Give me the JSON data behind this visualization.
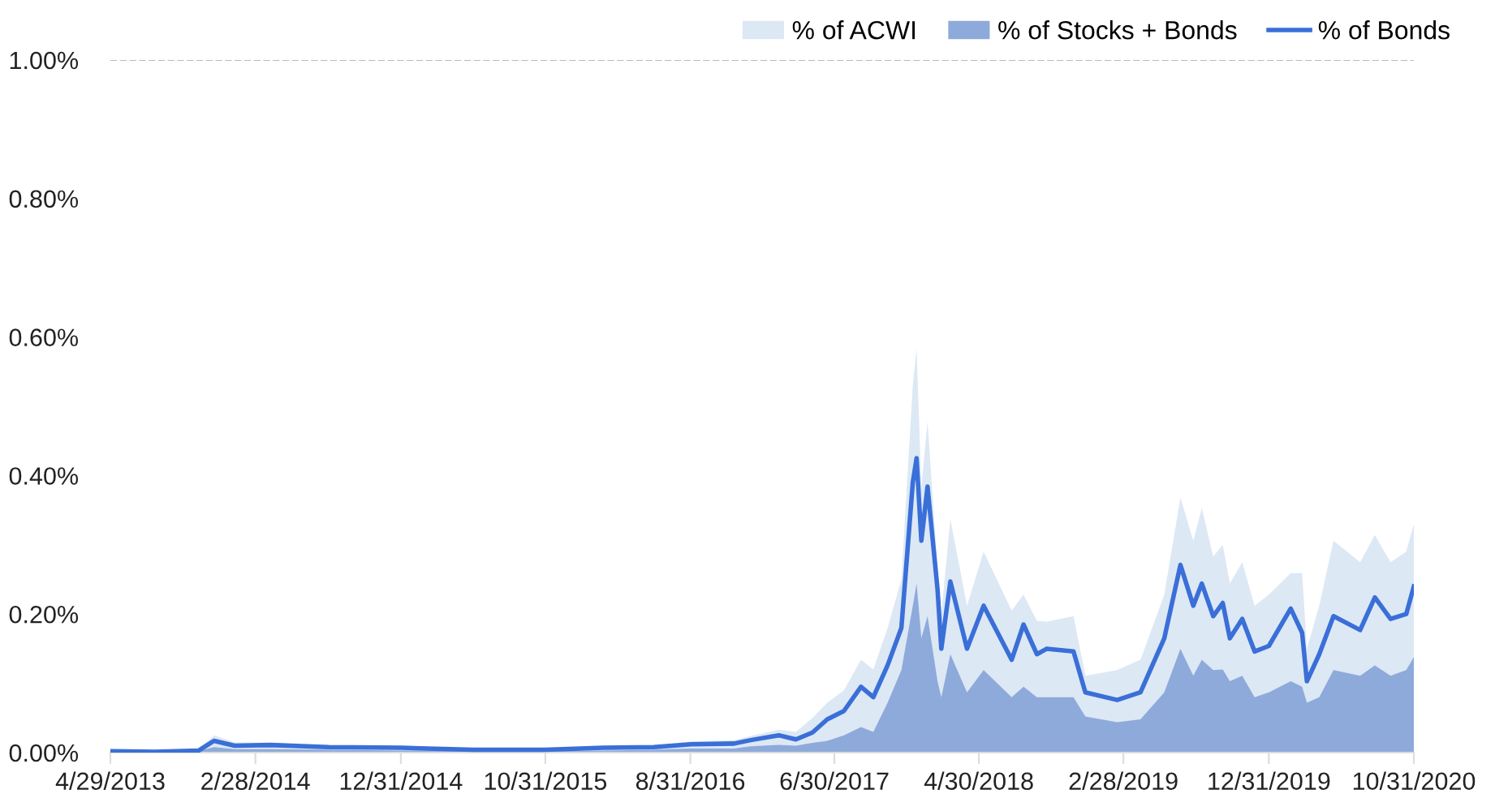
{
  "chart_data": {
    "type": "area",
    "x": [
      "2013-04-29",
      "2013-08-01",
      "2013-11-01",
      "2013-12-03",
      "2014-01-15",
      "2014-04-01",
      "2014-08-01",
      "2015-01-01",
      "2015-06-01",
      "2015-10-31",
      "2016-03-01",
      "2016-06-15",
      "2016-09-01",
      "2016-12-01",
      "2017-01-05",
      "2017-03-05",
      "2017-04-10",
      "2017-05-15",
      "2017-06-15",
      "2017-07-20",
      "2017-08-25",
      "2017-09-20",
      "2017-10-20",
      "2017-11-18",
      "2017-12-12",
      "2017-12-20",
      "2017-12-30",
      "2018-01-12",
      "2018-02-02",
      "2018-02-10",
      "2018-03-01",
      "2018-04-05",
      "2018-05-10",
      "2018-07-08",
      "2018-08-02",
      "2018-08-30",
      "2018-09-20",
      "2018-11-15",
      "2018-12-10",
      "2019-02-15",
      "2019-04-05",
      "2019-05-25",
      "2019-06-28",
      "2019-07-25",
      "2019-08-12",
      "2019-09-05",
      "2019-09-25",
      "2019-10-10",
      "2019-11-05",
      "2019-12-01",
      "2019-12-31",
      "2020-02-15",
      "2020-03-10",
      "2020-03-20",
      "2020-04-15",
      "2020-05-15",
      "2020-07-10",
      "2020-08-10",
      "2020-09-12",
      "2020-10-15",
      "2020-10-31"
    ],
    "series": [
      {
        "name": "% of ACWI",
        "color": "#dde8f5",
        "values": [
          0.003,
          0.002,
          0.005,
          0.025,
          0.015,
          0.014,
          0.01,
          0.009,
          0.005,
          0.005,
          0.009,
          0.01,
          0.016,
          0.018,
          0.024,
          0.033,
          0.03,
          0.05,
          0.072,
          0.09,
          0.134,
          0.12,
          0.18,
          0.25,
          0.53,
          0.583,
          0.384,
          0.478,
          0.267,
          0.2,
          0.337,
          0.212,
          0.29,
          0.205,
          0.228,
          0.19,
          0.189,
          0.197,
          0.111,
          0.119,
          0.134,
          0.228,
          0.368,
          0.306,
          0.353,
          0.283,
          0.3,
          0.244,
          0.275,
          0.212,
          0.228,
          0.259,
          0.259,
          0.15,
          0.212,
          0.306,
          0.275,
          0.314,
          0.275,
          0.29,
          0.33
        ]
      },
      {
        "name": "% of Stocks + Bonds",
        "color": "#8eaadb",
        "values": [
          0.001,
          0.001,
          0.002,
          0.008,
          0.005,
          0.005,
          0.004,
          0.003,
          0.002,
          0.002,
          0.003,
          0.004,
          0.006,
          0.006,
          0.009,
          0.011,
          0.01,
          0.014,
          0.017,
          0.025,
          0.037,
          0.03,
          0.072,
          0.119,
          0.212,
          0.244,
          0.165,
          0.197,
          0.103,
          0.08,
          0.142,
          0.087,
          0.119,
          0.08,
          0.095,
          0.08,
          0.08,
          0.08,
          0.052,
          0.044,
          0.048,
          0.087,
          0.15,
          0.111,
          0.134,
          0.119,
          0.12,
          0.103,
          0.111,
          0.08,
          0.087,
          0.103,
          0.095,
          0.072,
          0.08,
          0.119,
          0.111,
          0.126,
          0.111,
          0.119,
          0.138
        ]
      },
      {
        "name": "% of Bonds",
        "type": "line",
        "color": "#3a6fd8",
        "values": [
          0.002,
          0.001,
          0.003,
          0.017,
          0.01,
          0.011,
          0.008,
          0.007,
          0.004,
          0.004,
          0.007,
          0.008,
          0.012,
          0.013,
          0.018,
          0.025,
          0.019,
          0.029,
          0.048,
          0.06,
          0.095,
          0.08,
          0.126,
          0.18,
          0.39,
          0.425,
          0.306,
          0.384,
          0.236,
          0.15,
          0.247,
          0.15,
          0.212,
          0.134,
          0.185,
          0.142,
          0.15,
          0.146,
          0.087,
          0.076,
          0.087,
          0.165,
          0.271,
          0.212,
          0.244,
          0.197,
          0.216,
          0.165,
          0.193,
          0.146,
          0.154,
          0.208,
          0.173,
          0.103,
          0.142,
          0.197,
          0.177,
          0.224,
          0.193,
          0.2,
          0.24
        ]
      }
    ],
    "xlim": [
      "2013-04-29",
      "2020-10-31"
    ],
    "xticks": [
      {
        "value": "2013-04-29",
        "label": "4/29/2013"
      },
      {
        "value": "2014-02-28",
        "label": "2/28/2014"
      },
      {
        "value": "2014-12-31",
        "label": "12/31/2014"
      },
      {
        "value": "2015-10-31",
        "label": "10/31/2015"
      },
      {
        "value": "2016-08-31",
        "label": "8/31/2016"
      },
      {
        "value": "2017-06-30",
        "label": "6/30/2017"
      },
      {
        "value": "2018-04-30",
        "label": "4/30/2018"
      },
      {
        "value": "2019-02-28",
        "label": "2/28/2019"
      },
      {
        "value": "2019-12-31",
        "label": "12/31/2019"
      },
      {
        "value": "2020-10-31",
        "label": "10/31/2020"
      }
    ],
    "ylim": [
      0,
      1.0
    ],
    "yticks": [
      {
        "value": 0,
        "label": "0.00%"
      },
      {
        "value": 0.2,
        "label": "0.20%"
      },
      {
        "value": 0.4,
        "label": "0.40%"
      },
      {
        "value": 0.6,
        "label": "0.60%"
      },
      {
        "value": 0.8,
        "label": "0.80%"
      },
      {
        "value": 1.0,
        "label": "1.00%"
      }
    ],
    "ref_lines": [
      {
        "axis": "y",
        "value": 1.0,
        "color": "#bbbbbb",
        "line_style": "dashed"
      }
    ],
    "legend": "top right",
    "grid": false
  }
}
